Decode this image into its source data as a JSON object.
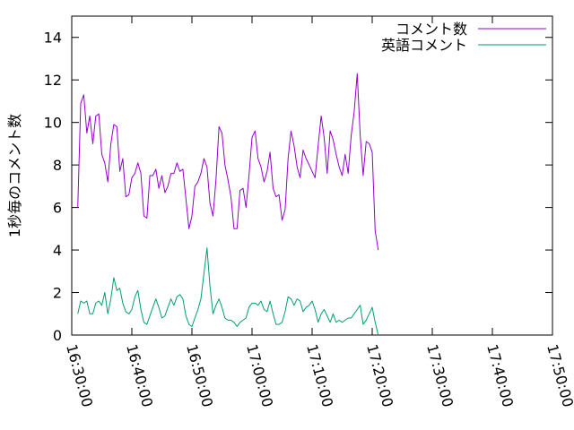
{
  "chart_data": {
    "type": "line",
    "title": "",
    "xlabel": "",
    "ylabel": "1秒毎のコメント数",
    "xlim": [
      "16:30:00",
      "17:50:00"
    ],
    "ylim": [
      0,
      15
    ],
    "x_ticks": [
      "16:30:00",
      "16:40:00",
      "16:50:00",
      "17:00:00",
      "17:10:00",
      "17:20:00",
      "17:30:00",
      "17:40:00",
      "17:50:00"
    ],
    "y_ticks": [
      "0",
      "2",
      "4",
      "6",
      "8",
      "10",
      "12",
      "14"
    ],
    "grid": false,
    "legend_position": "top-right",
    "series": [
      {
        "name": "コメント数",
        "color": "#9400d3",
        "points": [
          [
            "16:31:00",
            6.0
          ],
          [
            "16:31:30",
            10.9
          ],
          [
            "16:32:00",
            11.3
          ],
          [
            "16:32:30",
            9.5
          ],
          [
            "16:33:00",
            10.3
          ],
          [
            "16:33:30",
            9.0
          ],
          [
            "16:34:00",
            10.3
          ],
          [
            "16:34:30",
            10.4
          ],
          [
            "16:35:00",
            8.5
          ],
          [
            "16:35:30",
            8.1
          ],
          [
            "16:36:00",
            7.2
          ],
          [
            "16:36:30",
            9.0
          ],
          [
            "16:37:00",
            9.9
          ],
          [
            "16:37:30",
            9.8
          ],
          [
            "16:38:00",
            7.7
          ],
          [
            "16:38:30",
            8.3
          ],
          [
            "16:39:00",
            6.5
          ],
          [
            "16:39:30",
            6.6
          ],
          [
            "16:40:00",
            7.4
          ],
          [
            "16:40:30",
            7.6
          ],
          [
            "16:41:00",
            8.1
          ],
          [
            "16:41:30",
            7.6
          ],
          [
            "16:42:00",
            5.6
          ],
          [
            "16:42:30",
            5.5
          ],
          [
            "16:43:00",
            7.5
          ],
          [
            "16:43:30",
            7.5
          ],
          [
            "16:44:00",
            7.8
          ],
          [
            "16:44:30",
            6.9
          ],
          [
            "16:45:00",
            7.5
          ],
          [
            "16:45:30",
            6.7
          ],
          [
            "16:46:00",
            7.0
          ],
          [
            "16:46:30",
            7.6
          ],
          [
            "16:47:00",
            7.6
          ],
          [
            "16:47:30",
            8.1
          ],
          [
            "16:48:00",
            7.7
          ],
          [
            "16:48:30",
            7.8
          ],
          [
            "16:49:00",
            6.4
          ],
          [
            "16:49:30",
            5.0
          ],
          [
            "16:50:00",
            5.6
          ],
          [
            "16:50:30",
            7.0
          ],
          [
            "16:51:00",
            7.2
          ],
          [
            "16:51:30",
            7.6
          ],
          [
            "16:52:00",
            8.3
          ],
          [
            "16:52:30",
            7.9
          ],
          [
            "16:53:00",
            6.2
          ],
          [
            "16:53:30",
            5.6
          ],
          [
            "16:54:00",
            7.3
          ],
          [
            "16:54:30",
            9.8
          ],
          [
            "16:55:00",
            9.5
          ],
          [
            "16:55:30",
            8.0
          ],
          [
            "16:56:00",
            7.3
          ],
          [
            "16:56:30",
            6.5
          ],
          [
            "16:57:00",
            5.0
          ],
          [
            "16:57:30",
            5.0
          ],
          [
            "16:58:00",
            6.8
          ],
          [
            "16:58:30",
            6.9
          ],
          [
            "16:59:00",
            6.0
          ],
          [
            "16:59:30",
            7.5
          ],
          [
            "17:00:00",
            9.3
          ],
          [
            "17:00:30",
            9.6
          ],
          [
            "17:01:00",
            8.3
          ],
          [
            "17:01:30",
            7.9
          ],
          [
            "17:02:00",
            7.2
          ],
          [
            "17:02:30",
            7.7
          ],
          [
            "17:03:00",
            8.6
          ],
          [
            "17:03:30",
            6.9
          ],
          [
            "17:04:00",
            6.5
          ],
          [
            "17:04:30",
            6.6
          ],
          [
            "17:05:00",
            5.4
          ],
          [
            "17:05:30",
            5.9
          ],
          [
            "17:06:00",
            8.3
          ],
          [
            "17:06:30",
            9.6
          ],
          [
            "17:07:00",
            8.9
          ],
          [
            "17:07:30",
            7.9
          ],
          [
            "17:08:00",
            7.4
          ],
          [
            "17:08:30",
            8.7
          ],
          [
            "17:09:00",
            8.3
          ],
          [
            "17:09:30",
            8.0
          ],
          [
            "17:10:00",
            7.7
          ],
          [
            "17:10:30",
            7.4
          ],
          [
            "17:11:00",
            8.9
          ],
          [
            "17:11:30",
            10.3
          ],
          [
            "17:12:00",
            9.3
          ],
          [
            "17:12:30",
            7.6
          ],
          [
            "17:13:00",
            9.6
          ],
          [
            "17:13:30",
            9.2
          ],
          [
            "17:14:00",
            8.5
          ],
          [
            "17:14:30",
            7.9
          ],
          [
            "17:15:00",
            7.5
          ],
          [
            "17:15:30",
            8.5
          ],
          [
            "17:16:00",
            7.6
          ],
          [
            "17:16:30",
            9.4
          ],
          [
            "17:17:00",
            10.5
          ],
          [
            "17:17:30",
            12.3
          ],
          [
            "17:18:00",
            9.4
          ],
          [
            "17:18:30",
            7.5
          ],
          [
            "17:19:00",
            9.1
          ],
          [
            "17:19:30",
            9.0
          ],
          [
            "17:20:00",
            8.6
          ],
          [
            "17:20:30",
            4.9
          ],
          [
            "17:21:00",
            4.0
          ]
        ]
      },
      {
        "name": "英語コメント",
        "color": "#009e73",
        "points": [
          [
            "16:31:00",
            1.0
          ],
          [
            "16:31:30",
            1.6
          ],
          [
            "16:32:00",
            1.5
          ],
          [
            "16:32:30",
            1.6
          ],
          [
            "16:33:00",
            1.0
          ],
          [
            "16:33:30",
            1.0
          ],
          [
            "16:34:00",
            1.5
          ],
          [
            "16:34:30",
            1.6
          ],
          [
            "16:35:00",
            1.4
          ],
          [
            "16:35:30",
            2.0
          ],
          [
            "16:36:00",
            1.0
          ],
          [
            "16:36:30",
            1.7
          ],
          [
            "16:37:00",
            2.7
          ],
          [
            "16:37:30",
            2.1
          ],
          [
            "16:38:00",
            2.2
          ],
          [
            "16:38:30",
            1.5
          ],
          [
            "16:39:00",
            1.1
          ],
          [
            "16:39:30",
            1.0
          ],
          [
            "16:40:00",
            1.2
          ],
          [
            "16:40:30",
            1.8
          ],
          [
            "16:41:00",
            2.1
          ],
          [
            "16:41:30",
            1.2
          ],
          [
            "16:42:00",
            0.6
          ],
          [
            "16:42:30",
            0.5
          ],
          [
            "16:43:00",
            0.9
          ],
          [
            "16:43:30",
            1.3
          ],
          [
            "16:44:00",
            1.7
          ],
          [
            "16:44:30",
            1.3
          ],
          [
            "16:45:00",
            0.8
          ],
          [
            "16:45:30",
            0.9
          ],
          [
            "16:46:00",
            1.3
          ],
          [
            "16:46:30",
            1.7
          ],
          [
            "16:47:00",
            1.4
          ],
          [
            "16:47:30",
            1.8
          ],
          [
            "16:48:00",
            1.9
          ],
          [
            "16:48:30",
            1.7
          ],
          [
            "16:49:00",
            0.9
          ],
          [
            "16:49:30",
            0.5
          ],
          [
            "16:50:00",
            0.4
          ],
          [
            "16:50:30",
            0.8
          ],
          [
            "16:51:00",
            1.2
          ],
          [
            "16:51:30",
            1.7
          ],
          [
            "16:52:00",
            2.9
          ],
          [
            "16:52:30",
            4.1
          ],
          [
            "16:53:00",
            2.3
          ],
          [
            "16:53:30",
            1.0
          ],
          [
            "16:54:00",
            1.4
          ],
          [
            "16:54:30",
            1.7
          ],
          [
            "16:55:00",
            1.3
          ],
          [
            "16:55:30",
            0.8
          ],
          [
            "16:56:00",
            0.7
          ],
          [
            "16:56:30",
            0.7
          ],
          [
            "16:57:00",
            0.6
          ],
          [
            "16:57:30",
            0.4
          ],
          [
            "16:58:00",
            0.6
          ],
          [
            "16:58:30",
            0.7
          ],
          [
            "16:59:00",
            0.8
          ],
          [
            "16:59:30",
            1.3
          ],
          [
            "17:00:00",
            1.5
          ],
          [
            "17:00:30",
            1.5
          ],
          [
            "17:01:00",
            1.4
          ],
          [
            "17:01:30",
            1.6
          ],
          [
            "17:02:00",
            1.2
          ],
          [
            "17:02:30",
            1.1
          ],
          [
            "17:03:00",
            1.6
          ],
          [
            "17:03:30",
            1.0
          ],
          [
            "17:04:00",
            0.5
          ],
          [
            "17:04:30",
            0.5
          ],
          [
            "17:05:00",
            0.6
          ],
          [
            "17:05:30",
            1.1
          ],
          [
            "17:06:00",
            1.8
          ],
          [
            "17:06:30",
            1.7
          ],
          [
            "17:07:00",
            1.4
          ],
          [
            "17:07:30",
            1.7
          ],
          [
            "17:08:00",
            1.6
          ],
          [
            "17:08:30",
            1.1
          ],
          [
            "17:09:00",
            1.3
          ],
          [
            "17:09:30",
            1.4
          ],
          [
            "17:10:00",
            1.6
          ],
          [
            "17:10:30",
            1.2
          ],
          [
            "17:11:00",
            0.6
          ],
          [
            "17:11:30",
            1.0
          ],
          [
            "17:12:00",
            1.2
          ],
          [
            "17:12:30",
            0.9
          ],
          [
            "17:13:00",
            0.6
          ],
          [
            "17:13:30",
            1.0
          ],
          [
            "17:14:00",
            0.6
          ],
          [
            "17:14:30",
            0.7
          ],
          [
            "17:15:00",
            0.6
          ],
          [
            "17:15:30",
            0.7
          ],
          [
            "17:16:00",
            0.8
          ],
          [
            "17:16:30",
            0.8
          ],
          [
            "17:17:00",
            1.0
          ],
          [
            "17:17:30",
            1.2
          ],
          [
            "17:18:00",
            1.4
          ],
          [
            "17:18:30",
            0.5
          ],
          [
            "17:19:00",
            0.7
          ],
          [
            "17:19:30",
            1.0
          ],
          [
            "17:20:00",
            1.3
          ],
          [
            "17:20:30",
            0.6
          ],
          [
            "17:21:00",
            0.0
          ]
        ]
      }
    ]
  }
}
